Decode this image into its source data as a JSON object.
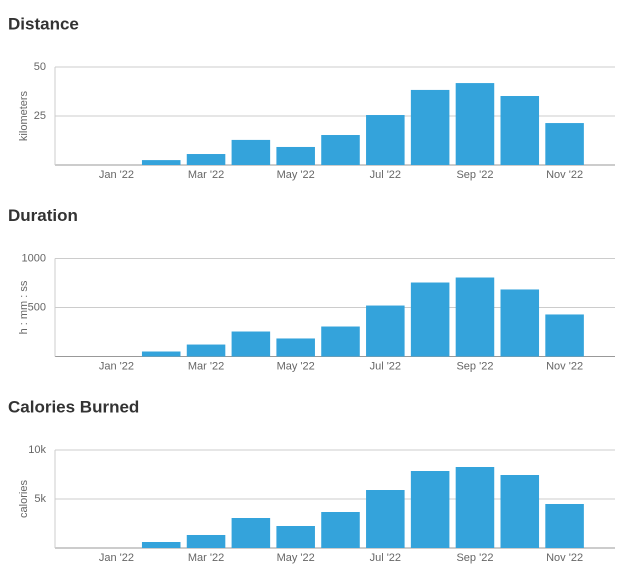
{
  "chart_data": [
    {
      "type": "bar",
      "title": "Distance",
      "y_label": "kilometers",
      "categories": [
        "Jan '22",
        null,
        "Mar '22",
        null,
        "May '22",
        null,
        "Jul '22",
        null,
        "Sep '22",
        null,
        "Nov '22"
      ],
      "values": [
        null,
        2.5,
        5.6,
        12.8,
        9.2,
        15.3,
        25.5,
        38.3,
        41.8,
        35.2,
        21.4
      ],
      "color": "#34a3db",
      "ylim": [
        0,
        50
      ],
      "yticks": [
        25,
        50
      ],
      "grid": true
    },
    {
      "type": "bar",
      "title": "Duration",
      "y_label": "h : mm : ss",
      "categories": [
        "Jan '22",
        null,
        "Mar '22",
        null,
        "May '22",
        null,
        "Jul '22",
        null,
        "Sep '22",
        null,
        "Nov '22"
      ],
      "values": [
        null,
        51,
        122,
        255,
        184,
        306,
        520,
        755,
        806,
        684,
        429
      ],
      "color": "#34a3db",
      "ylim": [
        0,
        1000
      ],
      "yticks": [
        500,
        1000
      ],
      "grid": true
    },
    {
      "type": "bar",
      "title": "Calories Burned",
      "y_label": "calories",
      "categories": [
        "Jan '22",
        null,
        "Mar '22",
        null,
        "May '22",
        null,
        "Jul '22",
        null,
        "Sep '22",
        null,
        "Nov '22"
      ],
      "values": [
        null,
        612,
        1327,
        3061,
        2245,
        3673,
        5918,
        7857,
        8265,
        7449,
        4490
      ],
      "color": "#34a3db",
      "ylim": [
        0,
        10000
      ],
      "yticks": [
        {
          "value": 5000,
          "label": "5k"
        },
        {
          "value": 10000,
          "label": "10k"
        }
      ],
      "grid": true
    }
  ]
}
